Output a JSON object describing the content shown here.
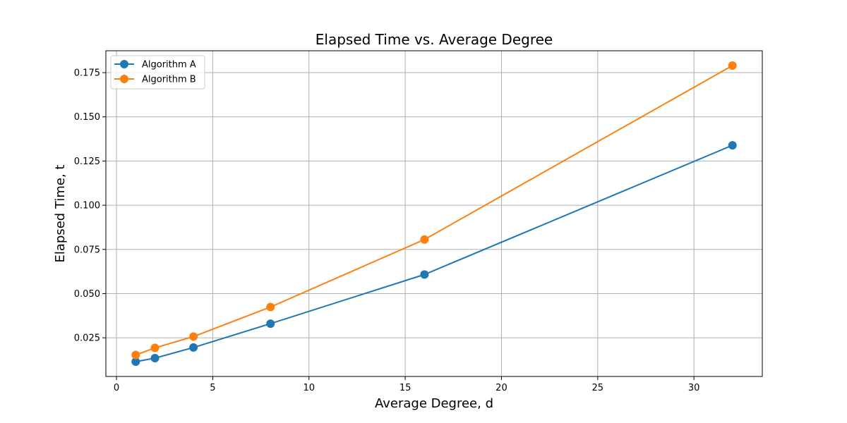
{
  "chart_data": {
    "type": "line",
    "title": "Elapsed Time vs. Average Degree",
    "xlabel": "Average Degree, d",
    "ylabel": "Elapsed Time, t",
    "x": [
      1,
      2,
      4,
      8,
      16,
      32
    ],
    "series": [
      {
        "name": "Algorithm A",
        "color": "#1f77b4",
        "values": [
          0.0115,
          0.0135,
          0.0195,
          0.033,
          0.0608,
          0.1339
        ]
      },
      {
        "name": "Algorithm B",
        "color": "#ff7f0e",
        "values": [
          0.0153,
          0.0193,
          0.0257,
          0.0424,
          0.0806,
          0.179
        ]
      }
    ],
    "xlim": [
      -0.55,
      33.55
    ],
    "ylim": [
      0.00312,
      0.18738
    ],
    "xticks": [
      0,
      5,
      10,
      15,
      20,
      25,
      30
    ],
    "xtick_labels": [
      "0",
      "5",
      "10",
      "15",
      "20",
      "25",
      "30"
    ],
    "yticks": [
      0.025,
      0.05,
      0.075,
      0.1,
      0.125,
      0.15,
      0.175
    ],
    "ytick_labels": [
      "0.025",
      "0.050",
      "0.075",
      "0.100",
      "0.125",
      "0.150",
      "0.175"
    ],
    "grid": true,
    "legend_position": "upper-left",
    "marker": "circle"
  }
}
